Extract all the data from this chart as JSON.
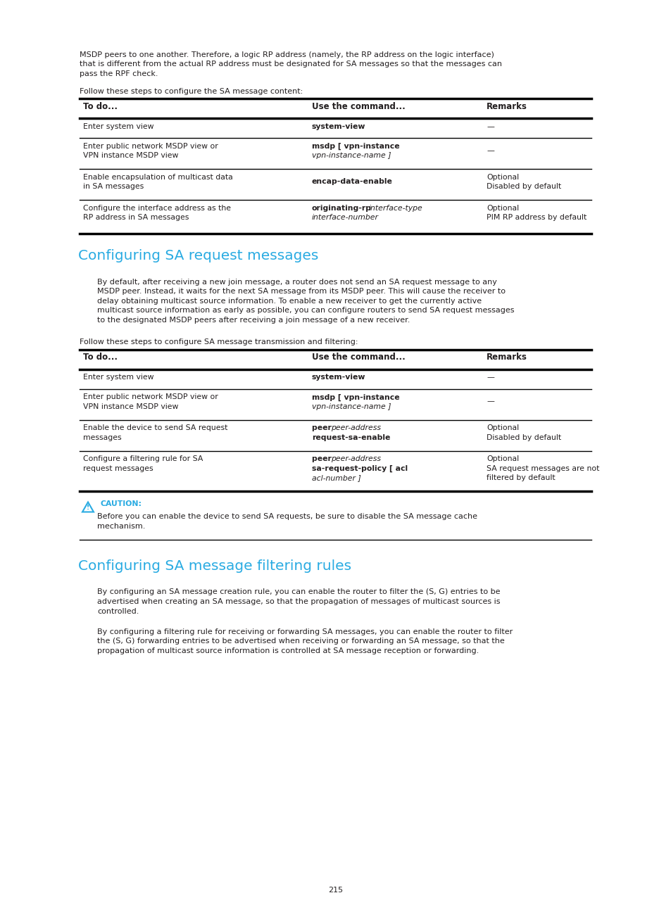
{
  "bg_color": "#ffffff",
  "text_color": "#231f20",
  "cyan_color": "#29abe2",
  "page_number": "215",
  "intro_text_line1": "MSDP peers to one another. Therefore, a logic RP address (namely, the RP address on the logic interface)",
  "intro_text_line2": "that is different from the actual RP address must be designated for SA messages so that the messages can",
  "intro_text_line3": "pass the RPF check.",
  "table1_caption": "Follow these steps to configure the SA message content:",
  "table1_headers": [
    "To do...",
    "Use the command...",
    "Remarks"
  ],
  "section1_title": "Configuring SA request messages",
  "section1_lines": [
    "By default, after receiving a new join message, a router does not send an SA request message to any",
    "MSDP peer. Instead, it waits for the next SA message from its MSDP peer. This will cause the receiver to",
    "delay obtaining multicast source information. To enable a new receiver to get the currently active",
    "multicast source information as early as possible, you can configure routers to send SA request messages",
    "to the designated MSDP peers after receiving a join message of a new receiver."
  ],
  "table2_caption": "Follow these steps to configure SA message transmission and filtering:",
  "table2_headers": [
    "To do...",
    "Use the command...",
    "Remarks"
  ],
  "caution_title": "CAUTION:",
  "caution_lines": [
    "Before you can enable the device to send SA requests, be sure to disable the SA message cache",
    "mechanism."
  ],
  "section2_title": "Configuring SA message filtering rules",
  "section2_para1_lines": [
    "By configuring an SA message creation rule, you can enable the router to filter the (S, G) entries to be",
    "advertised when creating an SA message, so that the propagation of messages of multicast sources is",
    "controlled."
  ],
  "section2_para2_lines": [
    "By configuring a filtering rule for receiving or forwarding SA messages, you can enable the router to filter",
    "the (S, G) forwarding entries to be advertised when receiving or forwarding an SA message, so that the",
    "propagation of multicast source information is controlled at SA message reception or forwarding."
  ]
}
